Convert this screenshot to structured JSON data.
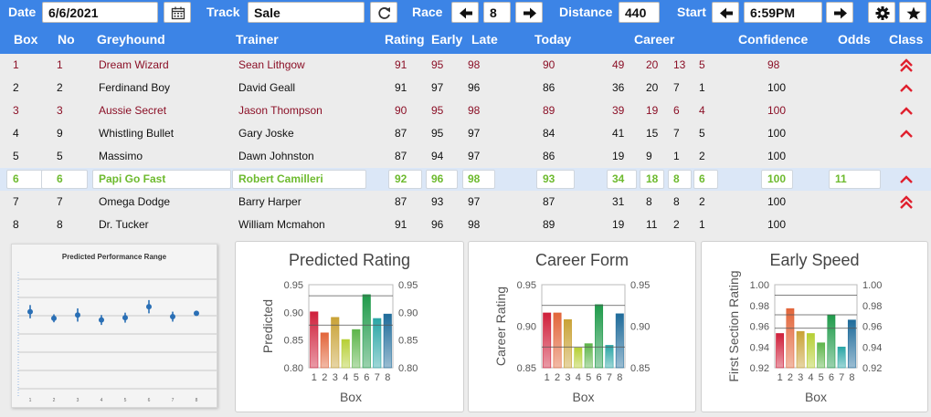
{
  "toolbar": {
    "date_label": "Date",
    "date_value": "6/6/2021",
    "calendar_icon": "calendar-icon",
    "track_label": "Track",
    "track_value": "Sale",
    "refresh_icon": "refresh-icon",
    "race_label": "Race",
    "race_value": "8",
    "distance_label": "Distance",
    "distance_value": "440",
    "start_label": "Start",
    "start_value": "6:59PM",
    "settings_icon": "gear-icon",
    "favorite_icon": "star-icon"
  },
  "columns": {
    "box": "Box",
    "no": "No",
    "greyhound": "Greyhound",
    "trainer": "Trainer",
    "rating": "Rating",
    "early": "Early",
    "late": "Late",
    "today": "Today",
    "career": "Career",
    "confidence": "Confidence",
    "odds": "Odds",
    "class": "Class"
  },
  "runners": [
    {
      "box": "1",
      "no": "1",
      "name": "Dream Wizard",
      "trainer": "Sean Lithgow",
      "rating": "91",
      "early": "95",
      "late": "98",
      "today": "90",
      "c1": "49",
      "c2": "20",
      "c3": "13",
      "c4": "5",
      "confidence": "98",
      "odds": "",
      "class": "double-up",
      "style": "red"
    },
    {
      "box": "2",
      "no": "2",
      "name": "Ferdinand Boy",
      "trainer": "David Geall",
      "rating": "91",
      "early": "97",
      "late": "96",
      "today": "86",
      "c1": "36",
      "c2": "20",
      "c3": "7",
      "c4": "1",
      "confidence": "100",
      "odds": "",
      "class": "up",
      "style": "normal"
    },
    {
      "box": "3",
      "no": "3",
      "name": "Aussie Secret",
      "trainer": "Jason Thompson",
      "rating": "90",
      "early": "95",
      "late": "98",
      "today": "89",
      "c1": "39",
      "c2": "19",
      "c3": "6",
      "c4": "4",
      "confidence": "100",
      "odds": "",
      "class": "up",
      "style": "red"
    },
    {
      "box": "4",
      "no": "9",
      "name": "Whistling Bullet",
      "trainer": "Gary Joske",
      "rating": "87",
      "early": "95",
      "late": "97",
      "today": "84",
      "c1": "41",
      "c2": "15",
      "c3": "7",
      "c4": "5",
      "confidence": "100",
      "odds": "",
      "class": "up",
      "style": "normal"
    },
    {
      "box": "5",
      "no": "5",
      "name": "Massimo",
      "trainer": "Dawn Johnston",
      "rating": "87",
      "early": "94",
      "late": "97",
      "today": "86",
      "c1": "19",
      "c2": "9",
      "c3": "1",
      "c4": "2",
      "confidence": "100",
      "odds": "",
      "class": "none",
      "style": "normal"
    },
    {
      "box": "6",
      "no": "6",
      "name": "Papi Go Fast",
      "trainer": "Robert Camilleri",
      "rating": "92",
      "early": "96",
      "late": "98",
      "today": "93",
      "c1": "34",
      "c2": "18",
      "c3": "8",
      "c4": "6",
      "confidence": "100",
      "odds": "11",
      "class": "up",
      "style": "selected"
    },
    {
      "box": "7",
      "no": "7",
      "name": "Omega Dodge",
      "trainer": "Barry Harper",
      "rating": "87",
      "early": "93",
      "late": "97",
      "today": "87",
      "c1": "31",
      "c2": "8",
      "c3": "8",
      "c4": "2",
      "confidence": "100",
      "odds": "",
      "class": "double-up",
      "style": "normal"
    },
    {
      "box": "8",
      "no": "8",
      "name": "Dr. Tucker",
      "trainer": "William Mcmahon",
      "rating": "91",
      "early": "96",
      "late": "98",
      "today": "89",
      "c1": "19",
      "c2": "11",
      "c3": "2",
      "c4": "1",
      "confidence": "100",
      "odds": "",
      "class": "none",
      "style": "normal"
    }
  ],
  "colors": {
    "header_bg": "#3c84e6",
    "red_text": "#8b0f26",
    "selected_text": "#6dba2e",
    "chevron": "#e0202e",
    "bar_colors": [
      "#cf1f3a",
      "#e2653a",
      "#c9a236",
      "#b6cf34",
      "#5db54a",
      "#1f9a4a",
      "#2aa6a6",
      "#1f6b9a"
    ]
  },
  "chart_data": [
    {
      "type": "scatter",
      "title": "Predicted Performance Range",
      "x": [
        1,
        2,
        3,
        4,
        5,
        6,
        7,
        8
      ],
      "y": [
        0.88,
        0.86,
        0.87,
        0.855,
        0.862,
        0.895,
        0.865,
        0.875
      ],
      "yerr": [
        0.02,
        0.012,
        0.02,
        0.015,
        0.015,
        0.02,
        0.015,
        0.005
      ],
      "ylim": [
        0.62,
        1.0
      ],
      "grid": true
    },
    {
      "type": "bar",
      "title": "Predicted Rating",
      "categories": [
        "1",
        "2",
        "3",
        "4",
        "5",
        "6",
        "7",
        "8"
      ],
      "values": [
        0.901,
        0.863,
        0.891,
        0.851,
        0.869,
        0.932,
        0.889,
        0.897
      ],
      "xlabel": "Box",
      "ylabel": "Predicted",
      "ylim": [
        0.8,
        0.95
      ],
      "yticks": [
        "0.80",
        "0.85",
        "0.90",
        "0.95"
      ],
      "reference_lines": [
        0.877,
        0.93
      ]
    },
    {
      "type": "bar",
      "title": "Career Form",
      "categories": [
        "1",
        "2",
        "3",
        "4",
        "5",
        "6",
        "7",
        "8"
      ],
      "values": [
        0.916,
        0.916,
        0.908,
        0.874,
        0.879,
        0.926,
        0.877,
        0.915
      ],
      "xlabel": "Box",
      "ylabel": "Career Rating",
      "ylim": [
        0.85,
        0.95
      ],
      "yticks": [
        "0.85",
        "0.90",
        "0.95"
      ],
      "reference_lines": [
        0.875,
        0.925
      ]
    },
    {
      "type": "bar",
      "title": "Early Speed",
      "categories": [
        "1",
        "2",
        "3",
        "4",
        "5",
        "6",
        "7",
        "8"
      ],
      "values": [
        0.953,
        0.977,
        0.955,
        0.953,
        0.944,
        0.971,
        0.94,
        0.966
      ],
      "xlabel": "Box",
      "ylabel": "First Section Rating",
      "ylim": [
        0.92,
        1.0
      ],
      "yticks": [
        "0.92",
        "0.94",
        "0.96",
        "0.98",
        "1.00"
      ],
      "reference_lines": [
        0.958,
        0.971,
        0.99
      ]
    }
  ]
}
